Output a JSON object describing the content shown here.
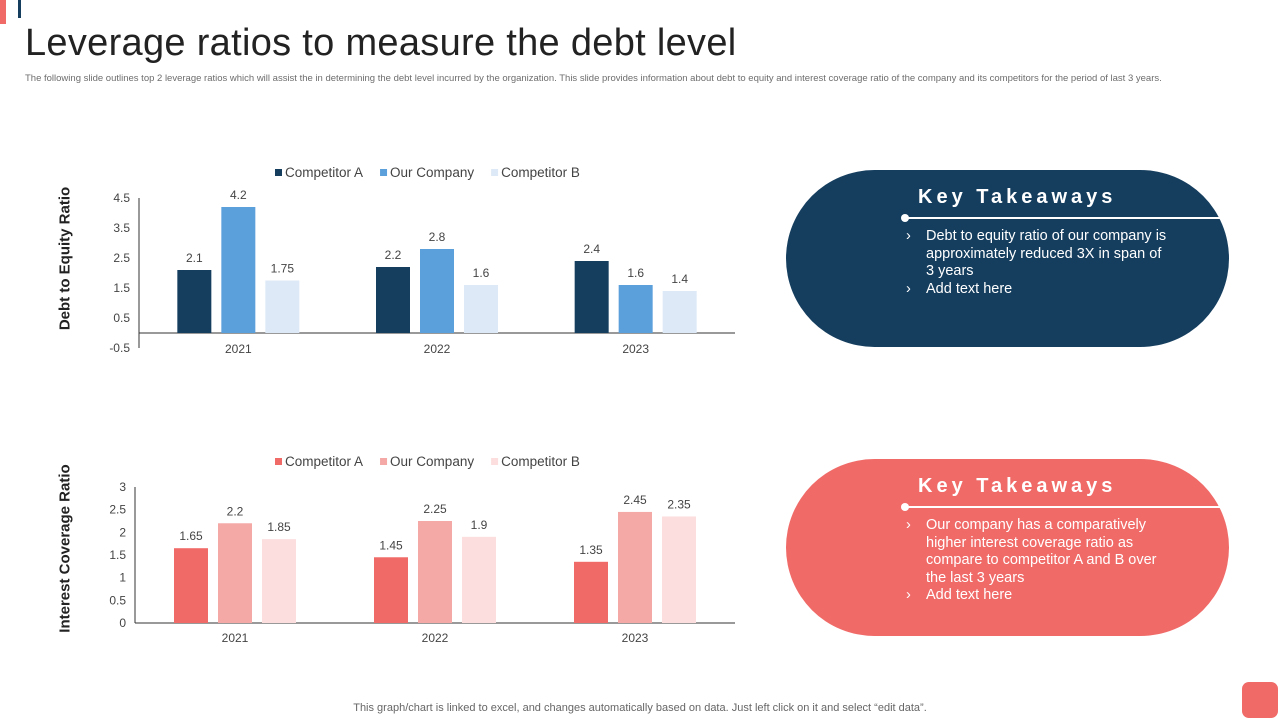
{
  "colors": {
    "navy": "#143d5e",
    "coral": "#f06a68"
  },
  "title": "Leverage ratios to measure the debt level",
  "subtitle": "The following slide outlines top 2 leverage ratios which will assist the in determining the debt level incurred by the organization. This slide provides information about debt to equity and interest coverage ratio of the company and its competitors for the period of last 3 years.",
  "footer": "This graph/chart is linked to excel,  and changes automatically based on data. Just left click on it and select “edit data”.",
  "takeaways": [
    {
      "title": "Key Takeaways",
      "items": [
        "Debt to equity ratio of our company is approximately reduced 3X in span of 3 years",
        "Add text here"
      ]
    },
    {
      "title": "Key Takeaways",
      "items": [
        "Our company has a comparatively higher interest coverage ratio as compare to competitor A and B over the last 3 years",
        "Add text here"
      ]
    }
  ],
  "chart_data": [
    {
      "type": "bar",
      "title": "",
      "xlabel": "",
      "ylabel": "Debt to Equity Ratio",
      "categories": [
        "2021",
        "2022",
        "2023"
      ],
      "series": [
        {
          "name": "Competitor A",
          "values": [
            2.1,
            2.2,
            2.4
          ],
          "color": "#143d5e",
          "labels": [
            "2.1",
            "2.2",
            "2.4"
          ]
        },
        {
          "name": "Our Company",
          "values": [
            4.2,
            2.8,
            1.6
          ],
          "color": "#5b9fdb",
          "labels": [
            "4.2",
            "2.8",
            "1.6"
          ]
        },
        {
          "name": "Competitor B",
          "values": [
            1.75,
            1.6,
            1.4
          ],
          "color": "#dde9f6",
          "labels": [
            "1.75",
            "1.6",
            "1.4"
          ]
        }
      ],
      "ylim": [
        -0.5,
        4.5
      ],
      "ticks": [
        -0.5,
        0.5,
        1.5,
        2.5,
        3.5,
        4.5
      ],
      "baseline": 0,
      "legend_position": "top",
      "grid": false
    },
    {
      "type": "bar",
      "title": "",
      "xlabel": "",
      "ylabel": "Interest Coverage Ratio",
      "categories": [
        "2021",
        "2022",
        "2023"
      ],
      "series": [
        {
          "name": "Competitor A",
          "values": [
            1.65,
            1.45,
            1.35
          ],
          "color": "#f06a68",
          "labels": [
            "1.65",
            "1.45",
            "1.35"
          ]
        },
        {
          "name": "Our Company",
          "values": [
            2.2,
            2.25,
            2.45
          ],
          "color": "#f4a9a7",
          "labels": [
            "2.2",
            "2.25",
            "2.45"
          ]
        },
        {
          "name": "Competitor B",
          "values": [
            1.85,
            1.9,
            2.35
          ],
          "color": "#fbdedd",
          "labels": [
            "1.85",
            "1.9",
            "2.35"
          ]
        }
      ],
      "ylim": [
        0,
        3
      ],
      "ticks": [
        0,
        0.5,
        1,
        1.5,
        2,
        2.5,
        3
      ],
      "baseline": 0,
      "legend_position": "top",
      "grid": false
    }
  ]
}
